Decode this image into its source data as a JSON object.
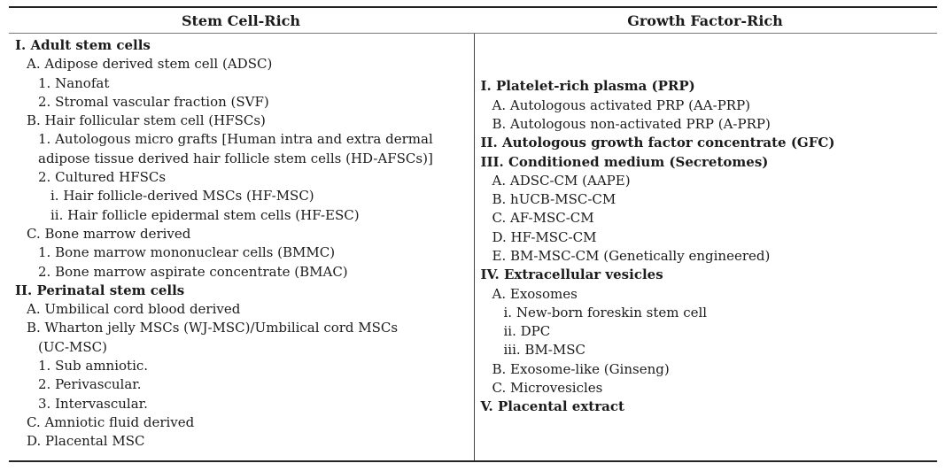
{
  "colors": {
    "background": "#ffffff",
    "text": "#1b1b1b",
    "rule_heavy": "#242424",
    "rule_light": "#767676"
  },
  "table": {
    "columns": [
      {
        "header": "Stem Cell-Rich",
        "lines": [
          {
            "indent": 0,
            "bold": true,
            "text": "I. Adult stem cells"
          },
          {
            "indent": 1,
            "bold": false,
            "text": "A. Adipose derived stem cell (ADSC)"
          },
          {
            "indent": 2,
            "bold": false,
            "text": "1. Nanofat"
          },
          {
            "indent": 2,
            "bold": false,
            "text": "2. Stromal vascular fraction (SVF)"
          },
          {
            "indent": 1,
            "bold": false,
            "text": "B. Hair follicular stem cell (HFSCs)"
          },
          {
            "indent": 2,
            "bold": false,
            "text": "1. Autologous micro grafts [Human intra and extra dermal"
          },
          {
            "indent": 2,
            "bold": false,
            "text": "adipose tissue derived hair follicle stem cells (HD-AFSCs)]"
          },
          {
            "indent": 2,
            "bold": false,
            "text": "2. Cultured HFSCs"
          },
          {
            "indent": 3,
            "bold": false,
            "text": "i. Hair follicle-derived MSCs (HF-MSC)"
          },
          {
            "indent": 3,
            "bold": false,
            "text": "ii. Hair follicle epidermal stem cells (HF-ESC)"
          },
          {
            "indent": 1,
            "bold": false,
            "text": "C. Bone marrow derived"
          },
          {
            "indent": 2,
            "bold": false,
            "text": "1. Bone marrow mononuclear cells (BMMC)"
          },
          {
            "indent": 2,
            "bold": false,
            "text": "2. Bone marrow aspirate concentrate (BMAC)"
          },
          {
            "indent": 0,
            "bold": true,
            "text": "II. Perinatal stem cells"
          },
          {
            "indent": 1,
            "bold": false,
            "text": "A. Umbilical cord blood derived"
          },
          {
            "indent": 1,
            "bold": false,
            "text": "B. Wharton jelly MSCs (WJ-MSC)/Umbilical cord MSCs"
          },
          {
            "indent": 2,
            "bold": false,
            "text": "(UC-MSC)"
          },
          {
            "indent": 2,
            "bold": false,
            "text": "1. Sub amniotic."
          },
          {
            "indent": 2,
            "bold": false,
            "text": "2. Perivascular."
          },
          {
            "indent": 2,
            "bold": false,
            "text": "3. Intervascular."
          },
          {
            "indent": 1,
            "bold": false,
            "text": "C. Amniotic fluid derived"
          },
          {
            "indent": 1,
            "bold": false,
            "text": "D. Placental MSC"
          }
        ]
      },
      {
        "header": "Growth Factor-Rich",
        "lines": [
          {
            "indent": 0,
            "bold": true,
            "text": "I. Platelet-rich plasma (PRP)"
          },
          {
            "indent": 1,
            "bold": false,
            "text": "A. Autologous activated PRP (AA-PRP)"
          },
          {
            "indent": 1,
            "bold": false,
            "text": "B. Autologous non-activated PRP (A-PRP)"
          },
          {
            "indent": 0,
            "bold": true,
            "text": "II. Autologous growth factor concentrate (GFC)"
          },
          {
            "indent": 0,
            "bold": true,
            "text": "III. Conditioned medium (Secretomes)"
          },
          {
            "indent": 1,
            "bold": false,
            "text": "A. ADSC-CM (AAPE)"
          },
          {
            "indent": 1,
            "bold": false,
            "text": "B. hUCB-MSC-CM"
          },
          {
            "indent": 1,
            "bold": false,
            "text": "C. AF-MSC-CM"
          },
          {
            "indent": 1,
            "bold": false,
            "text": "D. HF-MSC-CM"
          },
          {
            "indent": 1,
            "bold": false,
            "text": "E. BM-MSC-CM (Genetically engineered)"
          },
          {
            "indent": 0,
            "bold": true,
            "text": "IV. Extracellular vesicles"
          },
          {
            "indent": 1,
            "bold": false,
            "text": "A. Exosomes"
          },
          {
            "indent": 2,
            "bold": false,
            "text": "i. New-born foreskin stem cell"
          },
          {
            "indent": 2,
            "bold": false,
            "text": "ii. DPC"
          },
          {
            "indent": 2,
            "bold": false,
            "text": "iii. BM-MSC"
          },
          {
            "indent": 1,
            "bold": false,
            "text": "B. Exosome-like (Ginseng)"
          },
          {
            "indent": 1,
            "bold": false,
            "text": "C. Microvesicles"
          },
          {
            "indent": 0,
            "bold": true,
            "text": "V. Placental extract"
          }
        ]
      }
    ]
  }
}
